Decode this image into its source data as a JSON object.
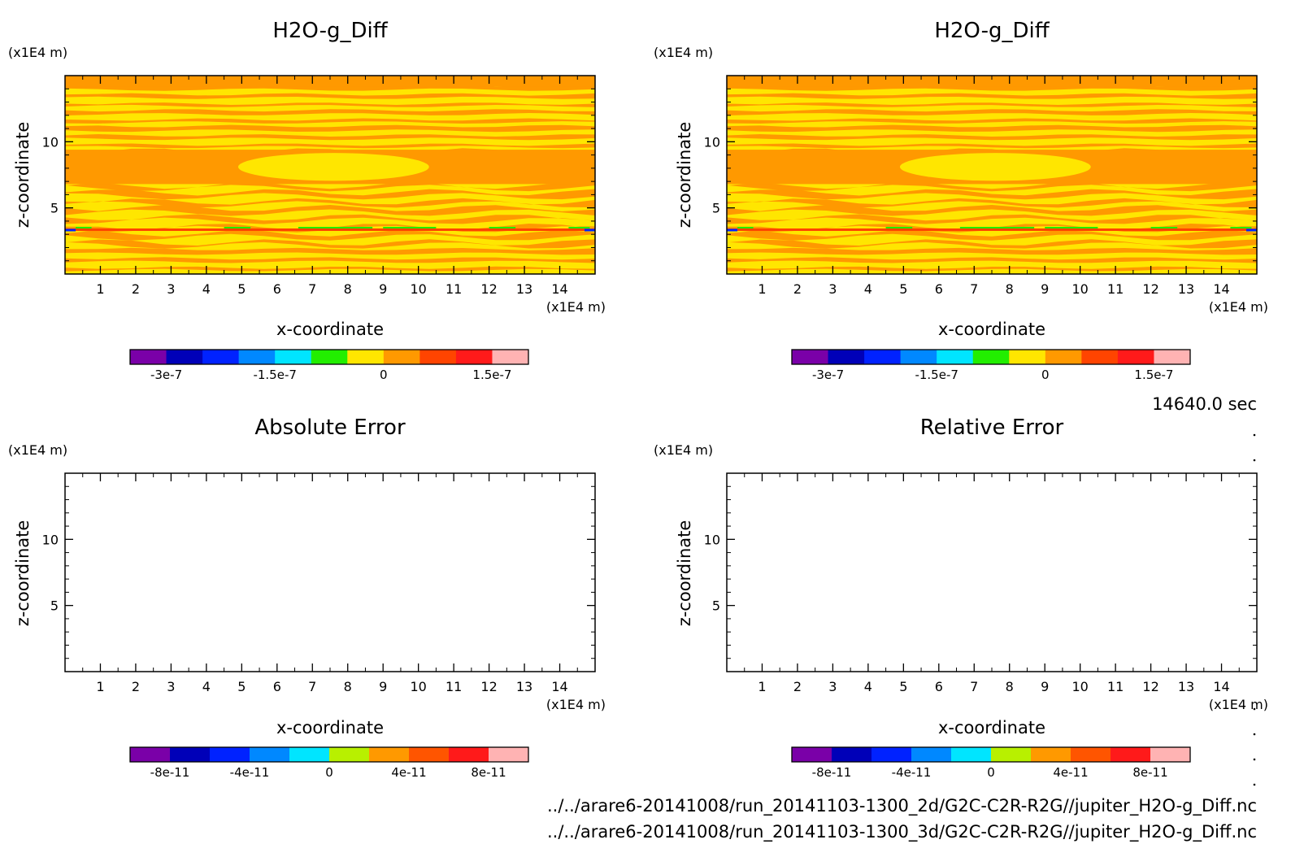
{
  "time_label": "14640.0 sec",
  "file_paths": [
    "../../arare6-20141008/run_20141103-1300_2d/G2C-C2R-R2G//jupiter_H2O-g_Diff.nc",
    "../../arare6-20141008/run_20141103-1300_3d/G2C-C2R-R2G//jupiter_H2O-g_Diff.nc"
  ],
  "colors": {
    "palette_top": [
      "#7a00a8",
      "#0000b8",
      "#0022ff",
      "#0088ff",
      "#00e5ff",
      "#22ee00",
      "#ffe600",
      "#ff9900",
      "#ff4400",
      "#ff1a1a",
      "#ffb3b3"
    ],
    "palette_bottom": [
      "#7a00a8",
      "#0000b8",
      "#0022ff",
      "#0088ff",
      "#00e5ff",
      "#b8f000",
      "#ff9900",
      "#ff5500",
      "#ff1a1a",
      "#ffb3b3"
    ]
  },
  "chart_data": [
    {
      "type": "heatmap",
      "title": "H2O-g_Diff",
      "xlabel": "x-coordinate",
      "ylabel": "z-coordinate",
      "x_unit": "(x1E4 m)",
      "y_unit": "(x1E4 m)",
      "xlim": [
        0,
        15
      ],
      "ylim": [
        0,
        15
      ],
      "x_ticks": [
        "1",
        "2",
        "3",
        "4",
        "5",
        "6",
        "7",
        "8",
        "9",
        "10",
        "11",
        "12",
        "13",
        "14"
      ],
      "y_ticks": [
        "5",
        "10"
      ],
      "field": "horizontal bands of values near 0 to 1e-7 (yellow/orange) with small negative values (green/blue) near z = 3.3",
      "colorbar": {
        "min": -3.5e-07,
        "max": 2e-07,
        "tick_labels": [
          "-3e-7",
          "-1.5e-7",
          "0",
          "1.5e-7"
        ],
        "tick_values": [
          -3e-07,
          -1.5e-07,
          0,
          1.5e-07
        ]
      }
    },
    {
      "type": "heatmap",
      "title": "H2O-g_Diff",
      "xlabel": "x-coordinate",
      "ylabel": "z-coordinate",
      "x_unit": "(x1E4 m)",
      "y_unit": "(x1E4 m)",
      "xlim": [
        0,
        15
      ],
      "ylim": [
        0,
        15
      ],
      "x_ticks": [
        "1",
        "2",
        "3",
        "4",
        "5",
        "6",
        "7",
        "8",
        "9",
        "10",
        "11",
        "12",
        "13",
        "14"
      ],
      "y_ticks": [
        "5",
        "10"
      ],
      "field": "identical to left panel",
      "colorbar": {
        "min": -3.5e-07,
        "max": 2e-07,
        "tick_labels": [
          "-3e-7",
          "-1.5e-7",
          "0",
          "1.5e-7"
        ],
        "tick_values": [
          -3e-07,
          -1.5e-07,
          0,
          1.5e-07
        ]
      }
    },
    {
      "type": "heatmap",
      "title": "Absolute Error",
      "xlabel": "x-coordinate",
      "ylabel": "z-coordinate",
      "x_unit": "(x1E4 m)",
      "y_unit": "(x1E4 m)",
      "xlim": [
        0,
        15
      ],
      "ylim": [
        0,
        15
      ],
      "x_ticks": [
        "1",
        "2",
        "3",
        "4",
        "5",
        "6",
        "7",
        "8",
        "9",
        "10",
        "11",
        "12",
        "13",
        "14"
      ],
      "y_ticks": [
        "5",
        "10"
      ],
      "field": "empty (zero everywhere)",
      "colorbar": {
        "min": -1e-10,
        "max": 1e-10,
        "tick_labels": [
          "-8e-11",
          "-4e-11",
          "0",
          "4e-11",
          "8e-11"
        ],
        "tick_values": [
          -8e-11,
          -4e-11,
          0,
          4e-11,
          8e-11
        ]
      }
    },
    {
      "type": "heatmap",
      "title": "Relative Error",
      "xlabel": "x-coordinate",
      "ylabel": "z-coordinate",
      "x_unit": "(x1E4 m)",
      "y_unit": "(x1E4 m)",
      "xlim": [
        0,
        15
      ],
      "ylim": [
        0,
        15
      ],
      "x_ticks": [
        "1",
        "2",
        "3",
        "4",
        "5",
        "6",
        "7",
        "8",
        "9",
        "10",
        "11",
        "12",
        "13",
        "14"
      ],
      "y_ticks": [
        "5",
        "10"
      ],
      "field": "empty (zero everywhere)",
      "colorbar": {
        "min": -1e-10,
        "max": 1e-10,
        "tick_labels": [
          "-8e-11",
          "-4e-11",
          "0",
          "4e-11",
          "8e-11"
        ],
        "tick_values": [
          -8e-11,
          -4e-11,
          0,
          4e-11,
          8e-11
        ]
      }
    }
  ]
}
